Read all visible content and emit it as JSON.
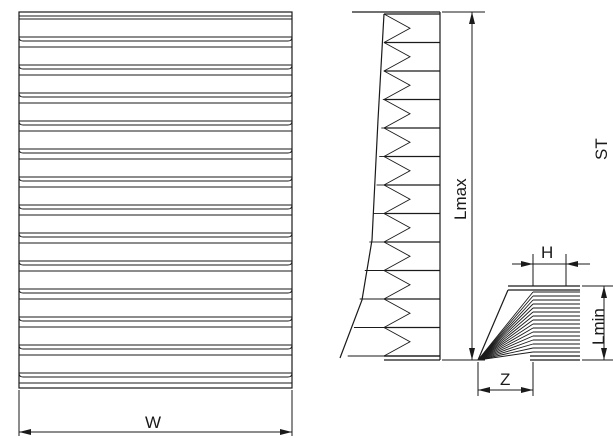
{
  "labels": {
    "width": "W",
    "length_max": "Lmax",
    "length_min": "Lmin",
    "height": "H",
    "offset": "Z",
    "stroke": "ST"
  },
  "colors": {
    "ink": "#1a1a1a",
    "background": "#ffffff"
  }
}
